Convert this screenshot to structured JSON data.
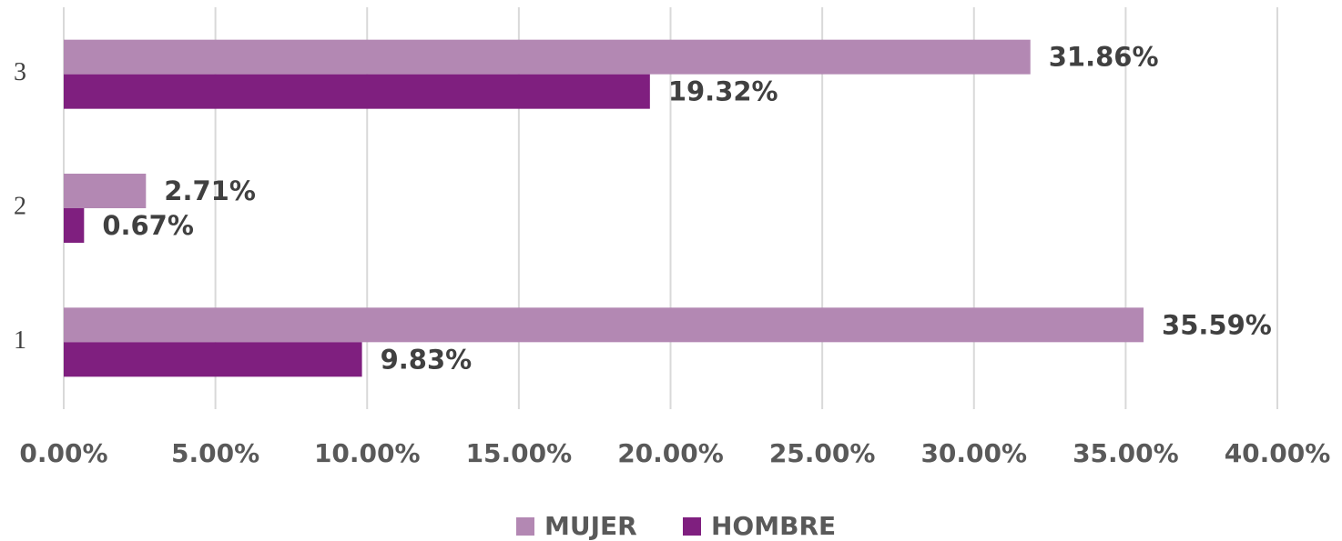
{
  "chart_data": {
    "type": "hbar",
    "categories": [
      "1",
      "2",
      "3"
    ],
    "series": [
      {
        "name": "MUJER",
        "color": "#b388b3",
        "values": [
          35.59,
          2.71,
          31.86
        ],
        "value_labels": [
          "35.59%",
          "2.71%",
          "31.86%"
        ]
      },
      {
        "name": "HOMBRE",
        "color": "#7f1f7f",
        "values": [
          9.83,
          0.67,
          19.32
        ],
        "value_labels": [
          "9.83%",
          "0.67%",
          "19.32%"
        ]
      }
    ],
    "xlim": [
      0,
      40
    ],
    "xticks": [
      {
        "value": 0,
        "label": "0.00%"
      },
      {
        "value": 5,
        "label": "5.00%"
      },
      {
        "value": 10,
        "label": "10.00%"
      },
      {
        "value": 15,
        "label": "15.00%"
      },
      {
        "value": 20,
        "label": "20.00%"
      },
      {
        "value": 25,
        "label": "25.00%"
      },
      {
        "value": 30,
        "label": "30.00%"
      },
      {
        "value": 35,
        "label": "35.00%"
      },
      {
        "value": 40,
        "label": "40.00%"
      }
    ],
    "grid": true
  }
}
